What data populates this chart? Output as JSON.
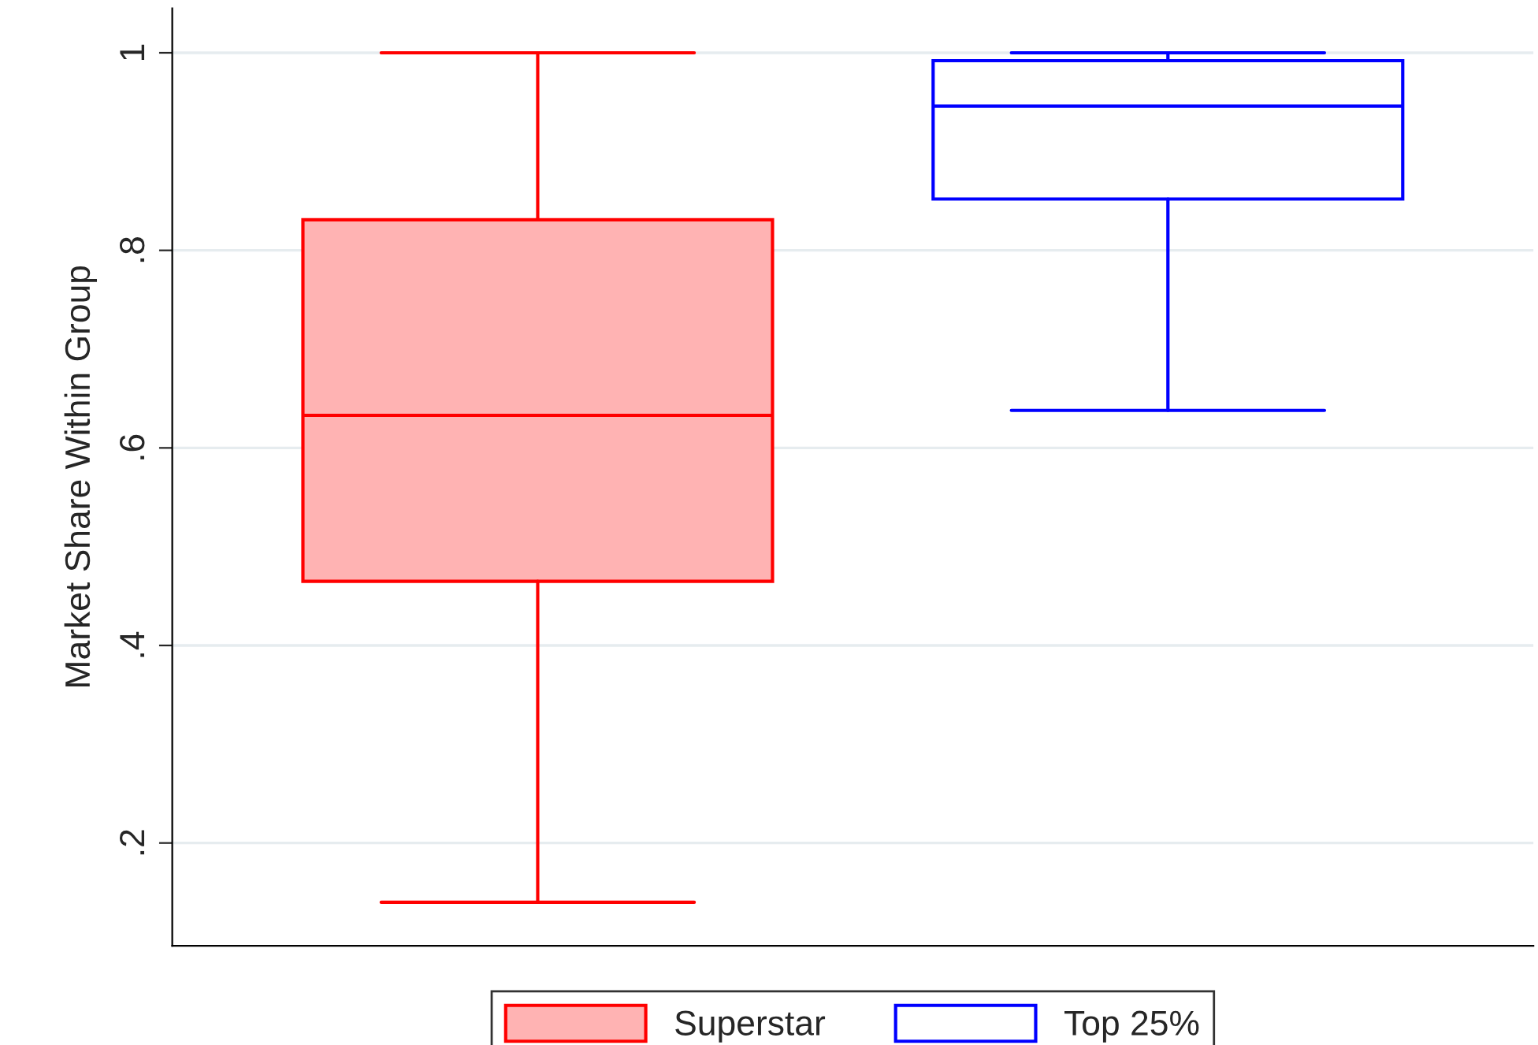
{
  "chart_data": {
    "type": "box",
    "ylabel": "Market Share Within Group",
    "categories": [
      null
    ],
    "series": [
      {
        "name": "Superstar",
        "color": "#ff0000",
        "colors": [
          "#ffb3b3"
        ],
        "boxes": [
          {
            "low": 0.14,
            "q1": 0.465,
            "median": 0.633,
            "q3": 0.831,
            "high": 1.0
          }
        ]
      },
      {
        "name": "Top 25%",
        "color": "#0000ff",
        "colors": [
          "#ffffff"
        ],
        "boxes": [
          {
            "low": 0.638,
            "q1": 0.852,
            "median": 0.946,
            "q3": 0.992,
            "high": 1.0
          }
        ]
      }
    ],
    "ylim": [
      0.096,
      1.045
    ],
    "yticks": [
      {
        "value": 0.2,
        "label": ".2"
      },
      {
        "value": 0.4,
        "label": ".4"
      },
      {
        "value": 0.6,
        "label": ".6"
      },
      {
        "value": 0.8,
        "label": ".8"
      },
      {
        "value": 1,
        "label": "1"
      }
    ],
    "grid": "y",
    "legend": "bottom",
    "tick_labels": "y"
  }
}
